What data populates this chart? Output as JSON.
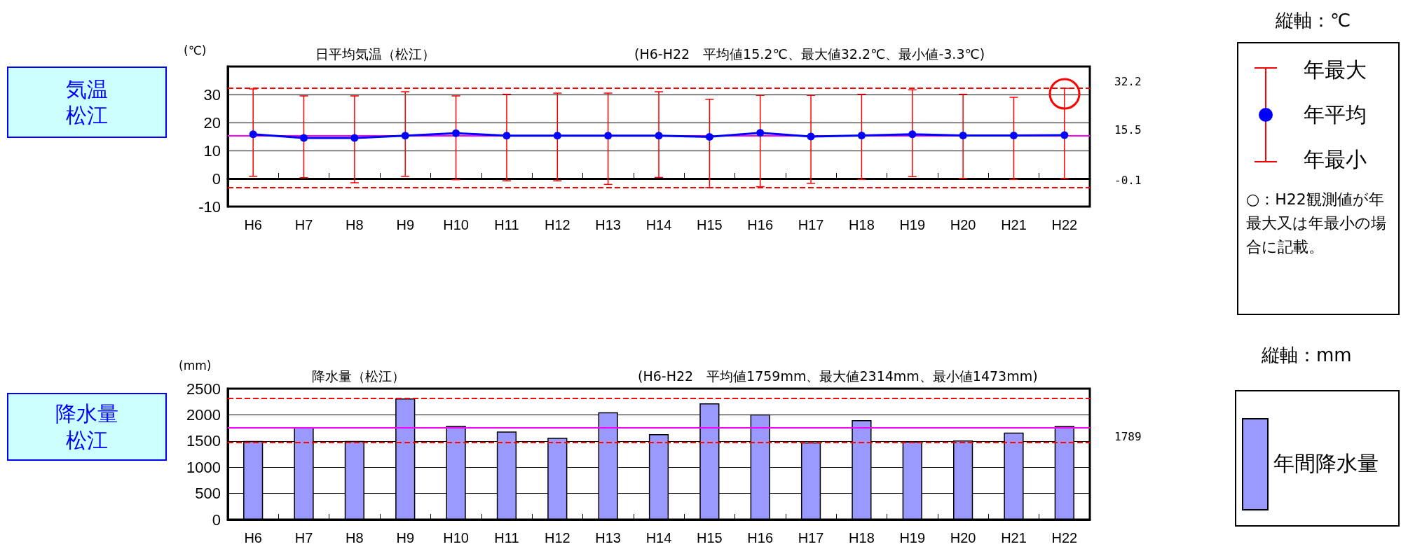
{
  "chart_data": [
    {
      "type": "line",
      "title": "日平均気温（松江）",
      "subtitle": "(H6-H22　平均値15.2℃、最大値32.2℃、最小値-3.3℃)",
      "ylabel": "(℃)",
      "categories": [
        "H6",
        "H7",
        "H8",
        "H9",
        "H10",
        "H11",
        "H12",
        "H13",
        "H14",
        "H15",
        "H16",
        "H17",
        "H18",
        "H19",
        "H20",
        "H21",
        "H22"
      ],
      "series": [
        {
          "name": "年平均",
          "color": "#0000ff",
          "values": [
            15.8,
            14.5,
            14.5,
            15.3,
            16.2,
            15.3,
            15.3,
            15.3,
            15.3,
            14.9,
            16.3,
            15.0,
            15.4,
            15.8,
            15.4,
            15.4,
            15.5
          ],
          "errors": [
            [
              0.8,
              32.0
            ],
            [
              0.3,
              29.5
            ],
            [
              -1.5,
              29.5
            ],
            [
              0.8,
              31.0
            ],
            [
              -0.4,
              29.5
            ],
            [
              -0.8,
              30.1
            ],
            [
              -0.8,
              30.5
            ],
            [
              -2.1,
              30.5
            ],
            [
              0.4,
              31.0
            ],
            [
              -3.2,
              28.3
            ],
            [
              -2.9,
              29.7
            ],
            [
              -1.7,
              29.7
            ],
            [
              -0.3,
              30.1
            ],
            [
              0.7,
              31.7
            ],
            [
              0.0,
              30.1
            ],
            [
              -0.3,
              29.0
            ],
            [
              -0.1,
              32.2
            ]
          ]
        }
      ],
      "ylim": [
        -10,
        40
      ],
      "yticks": [
        -10,
        0,
        10,
        20,
        30
      ],
      "grid": "y",
      "legend": "right",
      "marker": "circle",
      "ref_lines": [
        {
          "axis": "y",
          "value": 32.2,
          "color": "#ff0000",
          "line_style": "dashed"
        },
        {
          "axis": "y",
          "value": 15.2,
          "color": "#ff00ff",
          "line_style": "solid"
        },
        {
          "axis": "y",
          "value": -3.3,
          "color": "#ff0000",
          "line_style": "dashed"
        }
      ],
      "annotations": [
        "気温松江",
        "縦軸：℃",
        "年最大",
        "年最小",
        "○：H22観測値が年最大又は年最小の場合に記載。",
        "32.2",
        "15.5",
        "-0.1"
      ]
    },
    {
      "type": "bar",
      "title": "降水量（松江）",
      "subtitle": "(H6-H22　平均値1759mm、最大値2314mm、最小値1473mm)",
      "ylabel": "(mm)",
      "categories": [
        "H6",
        "H7",
        "H8",
        "H9",
        "H10",
        "H11",
        "H12",
        "H13",
        "H14",
        "H15",
        "H16",
        "H17",
        "H18",
        "H19",
        "H20",
        "H21",
        "H22"
      ],
      "series": [
        {
          "name": "年間降水量",
          "color": "#9999ff",
          "values": [
            1500,
            1760,
            1500,
            2314,
            1790,
            1680,
            1560,
            2050,
            1630,
            2220,
            2010,
            1473,
            1900,
            1490,
            1510,
            1660,
            1789
          ]
        }
      ],
      "ylim": [
        0,
        2500
      ],
      "yticks": [
        0,
        500,
        1000,
        1500,
        2000,
        2500
      ],
      "grid": "y",
      "legend": "right",
      "ref_lines": [
        {
          "axis": "y",
          "value": 2314,
          "color": "#ff0000",
          "line_style": "dashed"
        },
        {
          "axis": "y",
          "value": 1759,
          "color": "#ff00ff",
          "line_style": "solid"
        },
        {
          "axis": "y",
          "value": 1473,
          "color": "#ff0000",
          "line_style": "dashed"
        }
      ],
      "annotations": [
        "降水量松江",
        "縦軸：mm",
        "1789"
      ]
    }
  ]
}
